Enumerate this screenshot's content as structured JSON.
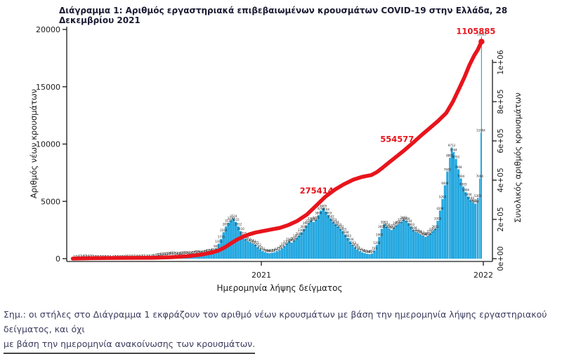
{
  "title": "Διάγραμμα 1: Αριθμός εργαστηριακά επιβεβαιωμένων κρουσμάτων COVID-19 στην Ελλάδα, 28 Δεκεμβρίου 2021",
  "note": {
    "line1": "Σημ.: οι στήλες στο Διάγραμμα 1 εκφράζουν τον αριθμό νέων κρουσμάτων με βάση την ημερομηνία λήψης εργαστηριακού δείγματος, και όχι",
    "line2": "με βάση την ημερομηνία ανακοίνωσης των κρουσμάτων."
  },
  "colors": {
    "bar": "#25a8e0",
    "line": "#e8141c",
    "title_text": "#1b1b33",
    "note_text": "#3c3c5f",
    "axis": "#1a1a1a",
    "bar_label": "#141414"
  },
  "chart_data": {
    "type": "bar+line",
    "title": "Διάγραμμα 1: Αριθμός εργαστηριακά επιβεβαιωμένων κρουσμάτων COVID-19 στην Ελλάδα, 28 Δεκεμβρίου 2021",
    "x_axis": {
      "label": "Ημερομηνία λήψης δείγματος",
      "unit": "days since 2021-01-01",
      "ticks": [
        {
          "label": "2021",
          "day": 0
        },
        {
          "label": "2022",
          "day": 365
        }
      ]
    },
    "y_left": {
      "label": "Αριθμός νέων κρουσμάτων",
      "lim": [
        0,
        20000
      ],
      "ticks": [
        0,
        5000,
        10000,
        15000,
        20000
      ]
    },
    "y_right": {
      "label": "Συνολικός αριθμός κρουσμάτων",
      "lim": [
        0,
        1000000
      ],
      "tick_step": 200000,
      "ticks": [
        "0e+00",
        "2e+05",
        "4e+05",
        "6e+05",
        "8e+05",
        "1e+06"
      ]
    },
    "bars": {
      "name": "daily-new-cases-estimated-from-plot",
      "points": [
        [
          -310,
          4
        ],
        [
          -306,
          10
        ],
        [
          -302,
          16
        ],
        [
          -298,
          22
        ],
        [
          -294,
          34
        ],
        [
          -290,
          62
        ],
        [
          -286,
          48
        ],
        [
          -282,
          32
        ],
        [
          -278,
          25
        ],
        [
          -274,
          18
        ],
        [
          -270,
          15
        ],
        [
          -266,
          12
        ],
        [
          -262,
          10
        ],
        [
          -258,
          15
        ],
        [
          -254,
          12
        ],
        [
          -250,
          10
        ],
        [
          -246,
          9
        ],
        [
          -242,
          12
        ],
        [
          -238,
          11
        ],
        [
          -234,
          16
        ],
        [
          -230,
          21
        ],
        [
          -226,
          19
        ],
        [
          -222,
          26
        ],
        [
          -218,
          31
        ],
        [
          -214,
          36
        ],
        [
          -210,
          31
        ],
        [
          -206,
          29
        ],
        [
          -202,
          36
        ],
        [
          -198,
          42
        ],
        [
          -194,
          52
        ],
        [
          -190,
          37
        ],
        [
          -186,
          42
        ],
        [
          -182,
          57
        ],
        [
          -178,
          78
        ],
        [
          -174,
          112
        ],
        [
          -170,
          152
        ],
        [
          -166,
          192
        ],
        [
          -162,
          232
        ],
        [
          -158,
          212
        ],
        [
          -154,
          252
        ],
        [
          -150,
          282
        ],
        [
          -146,
          312
        ],
        [
          -142,
          272
        ],
        [
          -138,
          242
        ],
        [
          -134,
          282
        ],
        [
          -130,
          322
        ],
        [
          -126,
          352
        ],
        [
          -122,
          332
        ],
        [
          -118,
          312
        ],
        [
          -114,
          342
        ],
        [
          -110,
          372
        ],
        [
          -106,
          424
        ],
        [
          -102,
          392
        ],
        [
          -98,
          362
        ],
        [
          -94,
          422
        ],
        [
          -90,
          482
        ],
        [
          -86,
          524
        ],
        [
          -82,
          562
        ],
        [
          -78,
          624
        ],
        [
          -74,
          905
        ],
        [
          -70,
          1310
        ],
        [
          -66,
          1715
        ],
        [
          -62,
          2310
        ],
        [
          -58,
          2815
        ],
        [
          -54,
          3120
        ],
        [
          -50,
          3330
        ],
        [
          -46,
          3510
        ],
        [
          -42,
          3215
        ],
        [
          -38,
          2812
        ],
        [
          -34,
          2410
        ],
        [
          -30,
          2015
        ],
        [
          -26,
          1712
        ],
        [
          -22,
          1515
        ],
        [
          -18,
          1414
        ],
        [
          -14,
          1311
        ],
        [
          -10,
          1215
        ],
        [
          -6,
          1012
        ],
        [
          -2,
          815
        ],
        [
          2,
          655
        ],
        [
          6,
          558
        ],
        [
          10,
          506
        ],
        [
          14,
          483
        ],
        [
          18,
          522
        ],
        [
          22,
          563
        ],
        [
          26,
          642
        ],
        [
          30,
          754
        ],
        [
          34,
          905
        ],
        [
          38,
          1104
        ],
        [
          42,
          1303
        ],
        [
          46,
          1502
        ],
        [
          50,
          1405
        ],
        [
          54,
          1604
        ],
        [
          58,
          1803
        ],
        [
          62,
          2004
        ],
        [
          66,
          2303
        ],
        [
          70,
          2602
        ],
        [
          74,
          2903
        ],
        [
          78,
          3104
        ],
        [
          82,
          3303
        ],
        [
          86,
          3204
        ],
        [
          90,
          3405
        ],
        [
          94,
          3804
        ],
        [
          98,
          4204
        ],
        [
          102,
          4405
        ],
        [
          106,
          4104
        ],
        [
          110,
          3803
        ],
        [
          114,
          3502
        ],
        [
          118,
          3203
        ],
        [
          122,
          3004
        ],
        [
          126,
          2803
        ],
        [
          130,
          2602
        ],
        [
          134,
          2403
        ],
        [
          138,
          2104
        ],
        [
          142,
          1803
        ],
        [
          146,
          1504
        ],
        [
          150,
          1203
        ],
        [
          154,
          1004
        ],
        [
          158,
          803
        ],
        [
          162,
          654
        ],
        [
          166,
          552
        ],
        [
          170,
          483
        ],
        [
          174,
          424
        ],
        [
          178,
          403
        ],
        [
          182,
          452
        ],
        [
          186,
          703
        ],
        [
          190,
          1204
        ],
        [
          194,
          1903
        ],
        [
          198,
          2604
        ],
        [
          202,
          3003
        ],
        [
          206,
          2804
        ],
        [
          210,
          2603
        ],
        [
          214,
          2504
        ],
        [
          218,
          2703
        ],
        [
          222,
          2904
        ],
        [
          226,
          3004
        ],
        [
          230,
          3203
        ],
        [
          234,
          3403
        ],
        [
          238,
          3304
        ],
        [
          242,
          3104
        ],
        [
          246,
          2803
        ],
        [
          250,
          2504
        ],
        [
          254,
          2303
        ],
        [
          258,
          2204
        ],
        [
          262,
          2103
        ],
        [
          266,
          2004
        ],
        [
          270,
          1903
        ],
        [
          274,
          2004
        ],
        [
          278,
          2203
        ],
        [
          282,
          2404
        ],
        [
          286,
          2603
        ],
        [
          290,
          3303
        ],
        [
          294,
          4204
        ],
        [
          298,
          5203
        ],
        [
          302,
          6404
        ],
        [
          306,
          7603
        ],
        [
          310,
          8803
        ],
        [
          313,
          9713
        ],
        [
          316,
          9304
        ],
        [
          320,
          8703
        ],
        [
          324,
          7804
        ],
        [
          328,
          7004
        ],
        [
          332,
          6303
        ],
        [
          336,
          5804
        ],
        [
          340,
          5404
        ],
        [
          344,
          5104
        ],
        [
          348,
          4903
        ],
        [
          352,
          4804
        ],
        [
          356,
          5303
        ],
        [
          359,
          7004
        ],
        [
          361,
          11004
        ],
        [
          362,
          19383
        ]
      ]
    },
    "line": {
      "name": "cumulative-confirmed-cases",
      "points": [
        [
          -310,
          500
        ],
        [
          -270,
          2900
        ],
        [
          -240,
          3500
        ],
        [
          -210,
          4100
        ],
        [
          -180,
          4800
        ],
        [
          -150,
          7000
        ],
        [
          -120,
          13000
        ],
        [
          -100,
          20000
        ],
        [
          -80,
          32000
        ],
        [
          -70,
          42000
        ],
        [
          -60,
          58000
        ],
        [
          -50,
          78000
        ],
        [
          -40,
          97000
        ],
        [
          -30,
          112000
        ],
        [
          -20,
          124000
        ],
        [
          -10,
          133000
        ],
        [
          0,
          139000
        ],
        [
          15,
          148000
        ],
        [
          31,
          157000
        ],
        [
          45,
          172000
        ],
        [
          59,
          192000
        ],
        [
          75,
          225000
        ],
        [
          92,
          275414
        ],
        [
          105,
          315000
        ],
        [
          120,
          350000
        ],
        [
          135,
          378000
        ],
        [
          151,
          402000
        ],
        [
          165,
          416000
        ],
        [
          181,
          426000
        ],
        [
          190,
          441000
        ],
        [
          200,
          465000
        ],
        [
          212,
          495000
        ],
        [
          225,
          527000
        ],
        [
          236,
          554577
        ],
        [
          250,
          592000
        ],
        [
          265,
          634000
        ],
        [
          273,
          655000
        ],
        [
          290,
          700000
        ],
        [
          304,
          742000
        ],
        [
          315,
          800000
        ],
        [
          325,
          865000
        ],
        [
          334,
          925000
        ],
        [
          342,
          985000
        ],
        [
          350,
          1035000
        ],
        [
          356,
          1065000
        ],
        [
          362,
          1105885
        ]
      ]
    },
    "annotations": [
      {
        "text": "275414",
        "day": 92,
        "value": 275414
      },
      {
        "text": "554577",
        "day": 236,
        "value": 554577
      },
      {
        "text": "1105885",
        "day": 362,
        "value": 1105885
      }
    ],
    "legend": "none",
    "grid": "off"
  }
}
